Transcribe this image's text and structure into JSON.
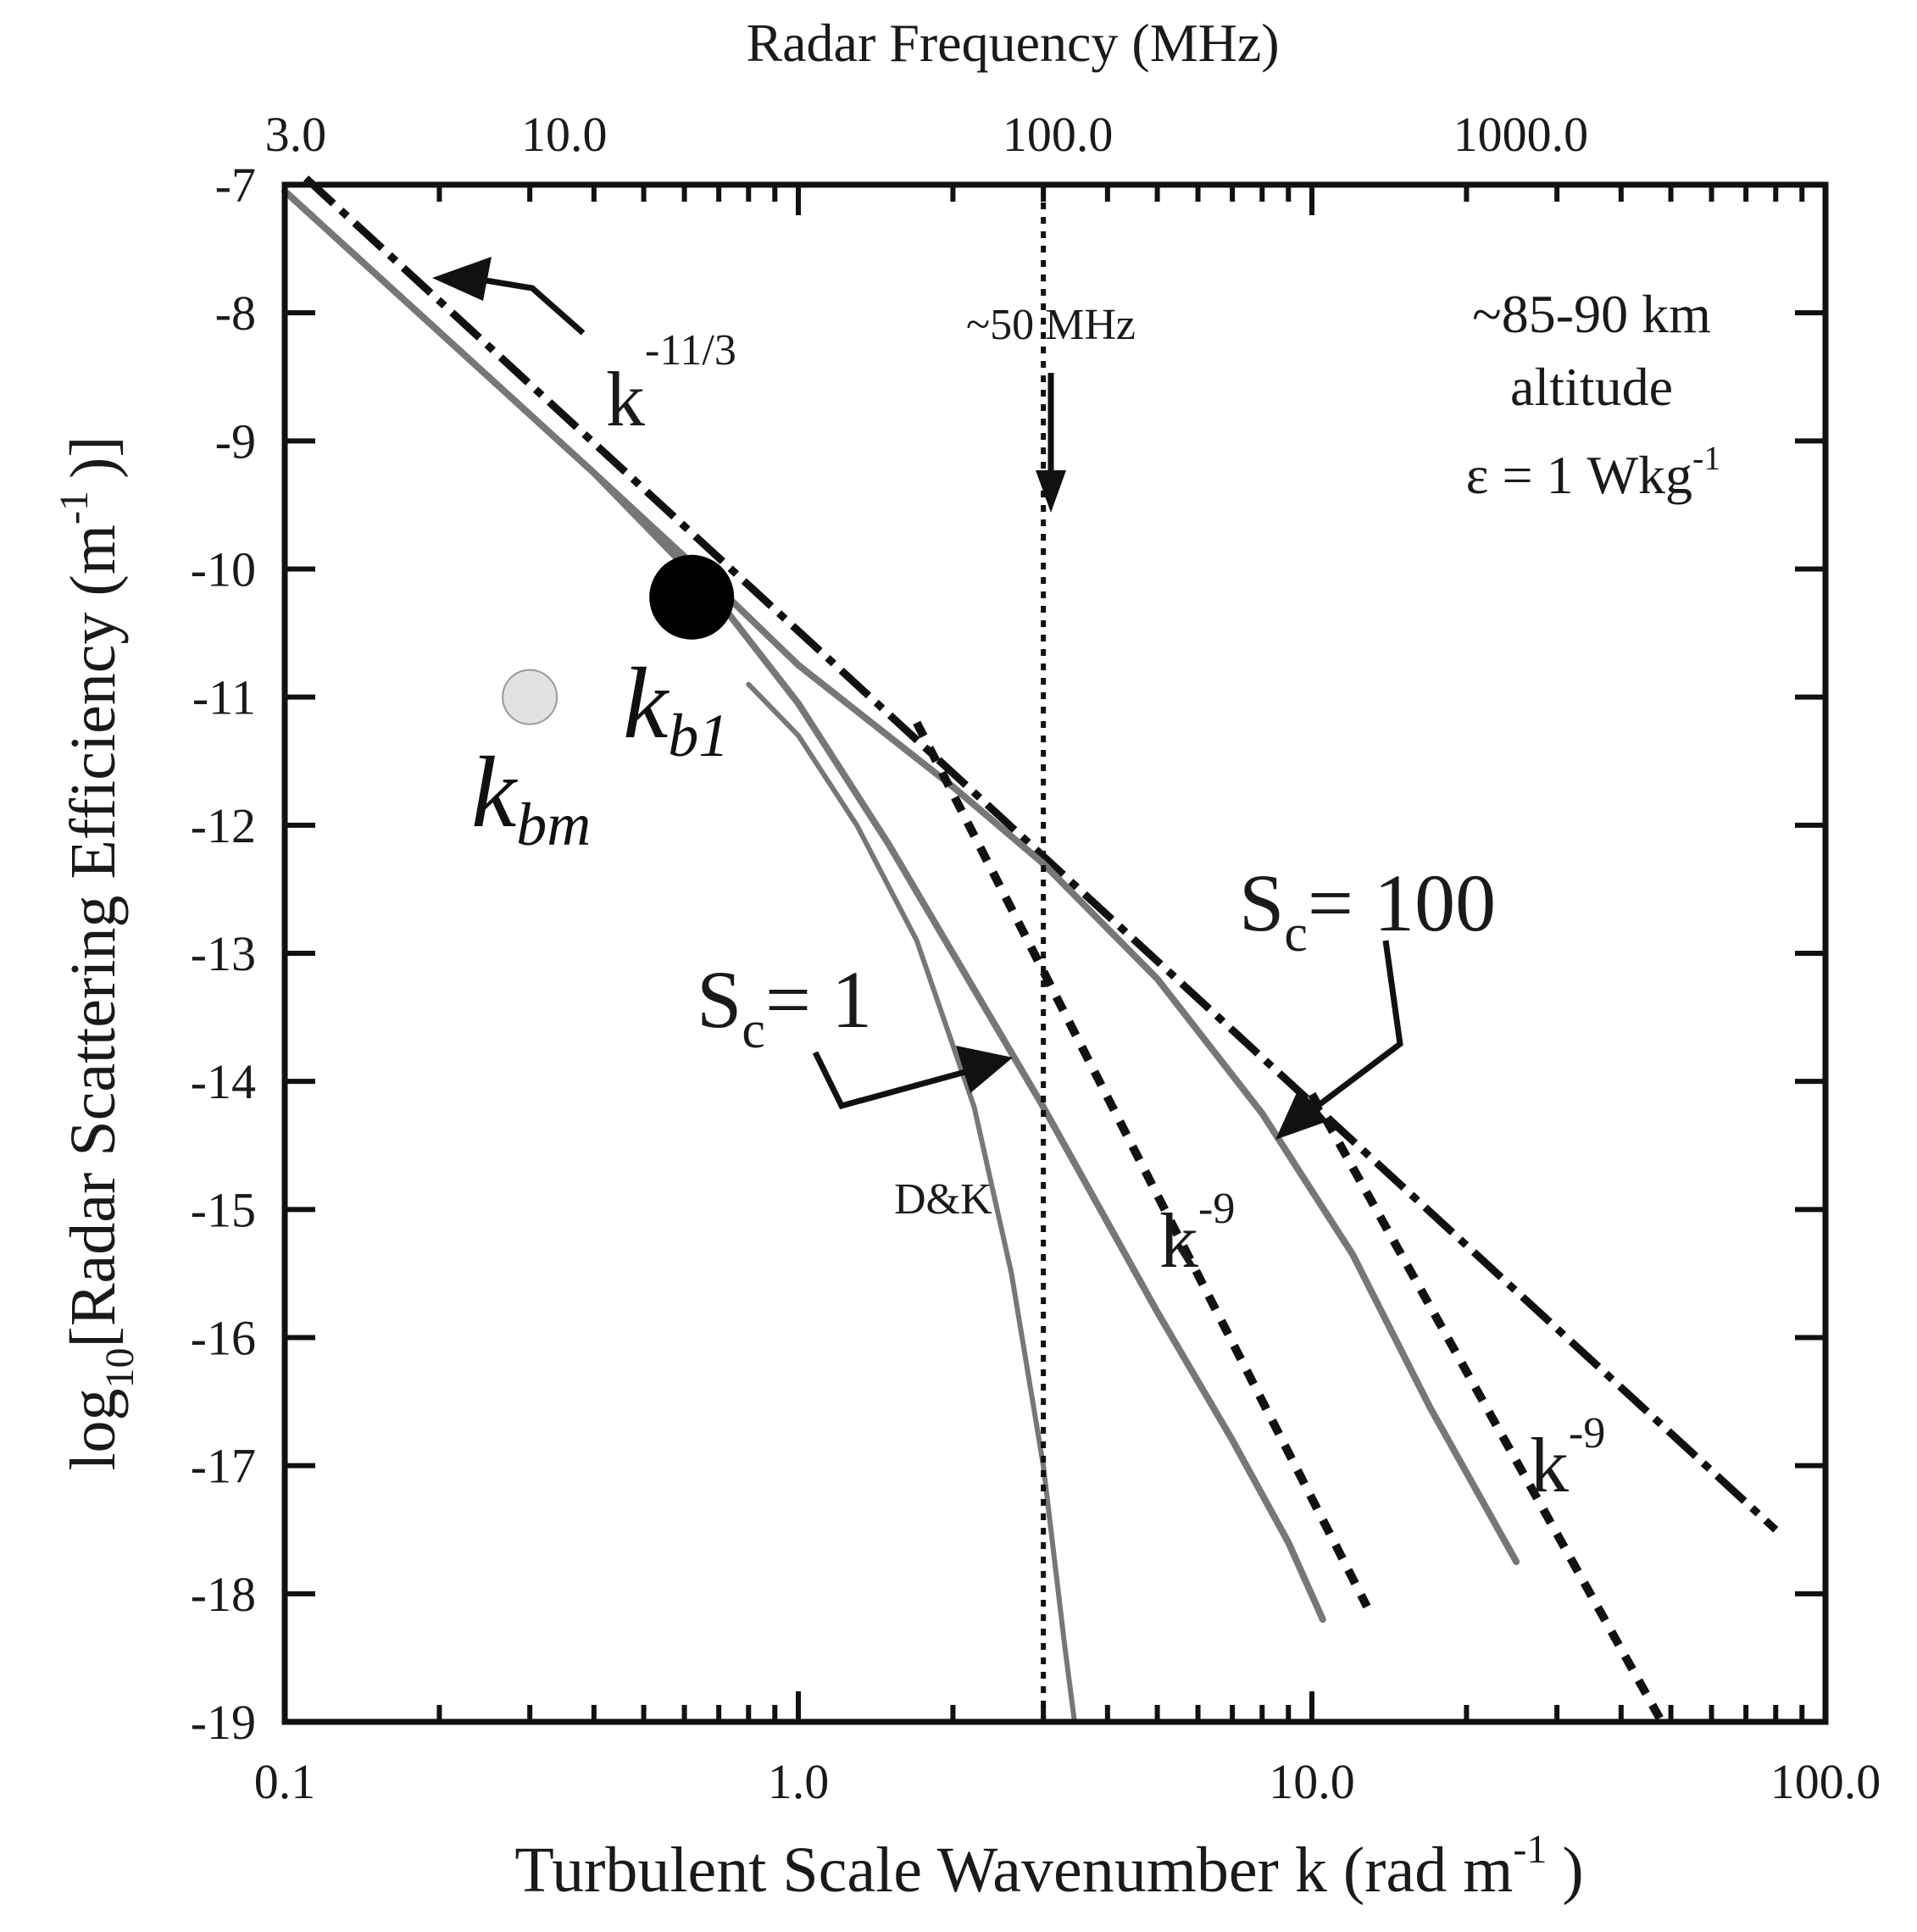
{
  "chart_data": {
    "type": "line",
    "title": "",
    "xlabel": "Turbulent Scale Wavenumber k (rad m",
    "xlabel_sup": "-1",
    "xlabel_end": ")",
    "ylabel_prefix": "log",
    "ylabel_sub": "10",
    "ylabel_main": "[Radar Scattering Efficiency (m",
    "ylabel_sup": "-1",
    "ylabel_end": ")]",
    "xscale": "log",
    "xlim": [
      0.1,
      100.0
    ],
    "ylim": [
      -19,
      -7
    ],
    "x_ticks": [
      {
        "value": 0.1,
        "label": "0.1"
      },
      {
        "value": 1.0,
        "label": "1.0"
      },
      {
        "value": 10.0,
        "label": "10.0"
      },
      {
        "value": 100.0,
        "label": "100.0"
      }
    ],
    "y_ticks": [
      {
        "value": -7,
        "label": "-7"
      },
      {
        "value": -8,
        "label": "-8"
      },
      {
        "value": -9,
        "label": "-9"
      },
      {
        "value": -10,
        "label": "-10"
      },
      {
        "value": -11,
        "label": "-11"
      },
      {
        "value": -12,
        "label": "-12"
      },
      {
        "value": -13,
        "label": "-13"
      },
      {
        "value": -14,
        "label": "-14"
      },
      {
        "value": -15,
        "label": "-15"
      },
      {
        "value": -16,
        "label": "-16"
      },
      {
        "value": -17,
        "label": "-17"
      },
      {
        "value": -18,
        "label": "-18"
      },
      {
        "value": -19,
        "label": "-19"
      }
    ],
    "top_axis": {
      "label": "Radar Frequency (MHz)",
      "ticks": [
        {
          "k": 0.105,
          "label": "3.0"
        },
        {
          "k": 0.35,
          "label": "10.0"
        },
        {
          "k": 3.2,
          "label": "100.0"
        },
        {
          "k": 25.5,
          "label": "1000.0"
        }
      ]
    },
    "series": [
      {
        "name": "k^-11/3",
        "style": "dash-dot",
        "color": "#111111",
        "x": [
          0.11,
          80.0
        ],
        "y": [
          -6.95,
          -17.5
        ]
      },
      {
        "name": "Sc = 100",
        "style": "solid",
        "color": "#777777",
        "x": [
          0.1,
          0.2,
          0.4,
          0.7,
          1.0,
          2.0,
          3.0,
          5.0,
          8.0,
          12.0,
          17.0,
          25.0
        ],
        "y": [
          -7.05,
          -8.15,
          -9.25,
          -10.15,
          -10.75,
          -11.7,
          -12.3,
          -13.2,
          -14.25,
          -15.35,
          -16.55,
          -17.75
        ]
      },
      {
        "name": "Sc = 1",
        "style": "solid",
        "color": "#777777",
        "x": [
          0.1,
          0.2,
          0.4,
          0.7,
          1.0,
          1.5,
          2.0,
          3.0,
          5.0,
          7.0,
          9.0,
          10.5
        ],
        "y": [
          -7.05,
          -8.15,
          -9.25,
          -10.25,
          -11.05,
          -12.15,
          -13.0,
          -14.2,
          -15.8,
          -16.8,
          -17.6,
          -18.2
        ]
      },
      {
        "name": "D&K",
        "style": "solid-thin",
        "color": "#777777",
        "x": [
          0.8,
          1.0,
          1.3,
          1.7,
          2.2,
          2.6,
          3.0,
          3.3,
          3.45
        ],
        "y": [
          -10.9,
          -11.3,
          -12.0,
          -12.9,
          -14.2,
          -15.5,
          -17.0,
          -18.4,
          -19.0
        ]
      },
      {
        "name": "k^-9 (Sc = 1)",
        "style": "dotted-thick",
        "color": "#111111",
        "x": [
          1.7,
          12.8
        ],
        "y": [
          -11.2,
          -18.1
        ]
      },
      {
        "name": "k^-9 (Sc = 100)",
        "style": "dotted-thick",
        "color": "#111111",
        "x": [
          10.0,
          48.0
        ],
        "y": [
          -14.1,
          -19.0
        ]
      }
    ],
    "points": [
      {
        "name": "k_b1",
        "k": 0.62,
        "y": -10.22,
        "color": "#000000"
      },
      {
        "name": "k_bm",
        "k": 0.3,
        "y": -11.0,
        "color": "#e2e2e2"
      }
    ],
    "vline": {
      "k": 3.0,
      "label": "~50 MHz"
    },
    "annotations": {
      "altitude": "~85-90 km",
      "altitude2": "altitude",
      "epsilon": "ε = 1 Wkg",
      "epsilon_sup": "-1",
      "k_letter": "k",
      "slope_1": "-11/3",
      "slope_9": "-9",
      "sc_s": "S",
      "sc_sub": "c",
      "sc1_val": "= 1",
      "sc100_val": "= 100",
      "kb1_sub": "b1",
      "kbm_sub": "bm",
      "dk": "D&K"
    }
  }
}
